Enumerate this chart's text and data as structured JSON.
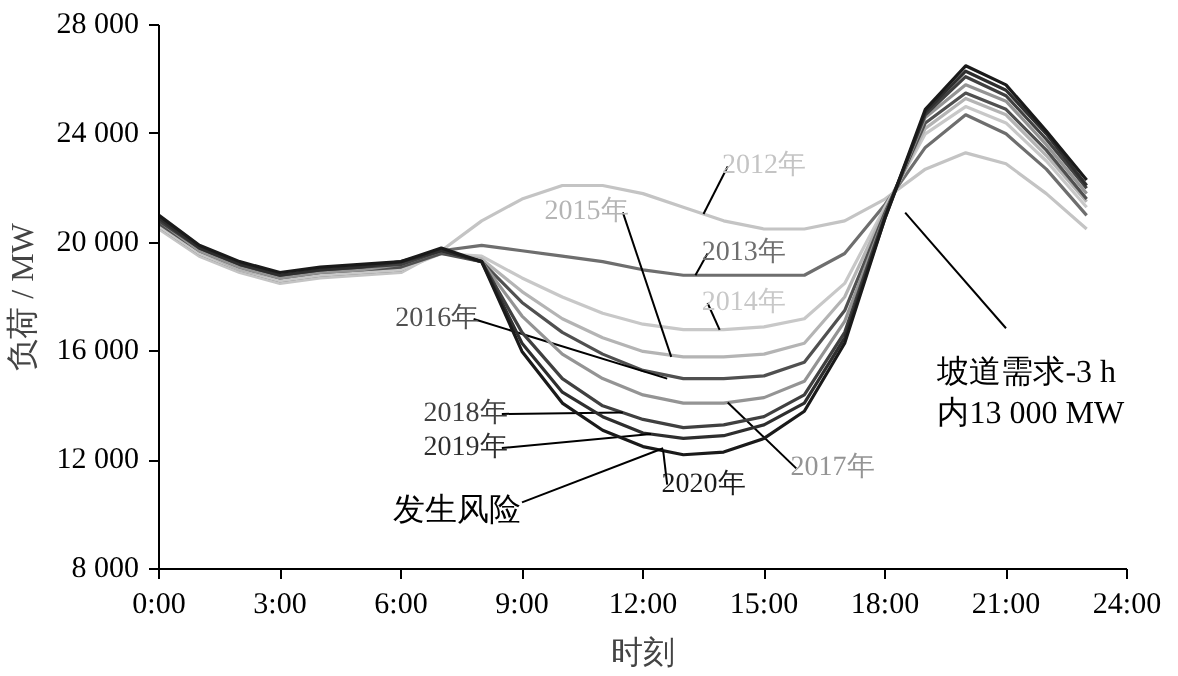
{
  "chart_data": {
    "type": "line",
    "xlabel": "时刻",
    "ylabel": "负荷 / MW",
    "x": [
      0,
      1,
      2,
      3,
      4,
      5,
      6,
      7,
      8,
      9,
      10,
      11,
      12,
      13,
      14,
      15,
      16,
      17,
      18,
      19,
      20,
      21,
      22,
      23
    ],
    "xlim": [
      0,
      24
    ],
    "ylim": [
      8000,
      28000
    ],
    "xticks": [
      {
        "value": 0,
        "label": "0:00"
      },
      {
        "value": 3,
        "label": "3:00"
      },
      {
        "value": 6,
        "label": "6:00"
      },
      {
        "value": 9,
        "label": "9:00"
      },
      {
        "value": 12,
        "label": "12:00"
      },
      {
        "value": 15,
        "label": "15:00"
      },
      {
        "value": 18,
        "label": "18:00"
      },
      {
        "value": 21,
        "label": "21:00"
      },
      {
        "value": 24,
        "label": "24:00"
      }
    ],
    "yticks": [
      {
        "value": 8000,
        "label": "8 000"
      },
      {
        "value": 12000,
        "label": "12 000"
      },
      {
        "value": 16000,
        "label": "16 000"
      },
      {
        "value": 20000,
        "label": "20 000"
      },
      {
        "value": 24000,
        "label": "24 000"
      },
      {
        "value": 28000,
        "label": "28 000"
      }
    ],
    "grid": false,
    "marker": "none",
    "line_style": "solid",
    "series": [
      {
        "name": "2012年",
        "color": "#c4c4c4",
        "values": [
          20500,
          19500,
          18900,
          18500,
          18700,
          18800,
          18900,
          19700,
          20800,
          21600,
          22100,
          22100,
          21800,
          21300,
          20800,
          20500,
          20500,
          20800,
          21600,
          22700,
          23300,
          22900,
          21800,
          20500
        ]
      },
      {
        "name": "2013年",
        "color": "#6e6e6e",
        "values": [
          20600,
          19600,
          19000,
          18600,
          18800,
          18900,
          19000,
          19700,
          19900,
          19700,
          19500,
          19300,
          19000,
          18800,
          18800,
          18800,
          18800,
          19600,
          21400,
          23500,
          24700,
          24000,
          22700,
          21000
        ]
      },
      {
        "name": "2014年",
        "color": "#c8c8c8",
        "values": [
          20600,
          19600,
          19000,
          18600,
          18800,
          18900,
          19000,
          19600,
          19500,
          18700,
          18000,
          17400,
          17000,
          16800,
          16800,
          16900,
          17200,
          18500,
          21300,
          24000,
          25000,
          24400,
          23000,
          21300
        ]
      },
      {
        "name": "2015年",
        "color": "#b4b4b4",
        "values": [
          20700,
          19700,
          19000,
          18700,
          18900,
          19000,
          19100,
          19600,
          19400,
          18200,
          17200,
          16500,
          16000,
          15800,
          15800,
          15900,
          16300,
          18000,
          21200,
          24200,
          25300,
          24700,
          23200,
          21500
        ]
      },
      {
        "name": "2016年",
        "color": "#505050",
        "values": [
          20700,
          19700,
          19100,
          18700,
          18900,
          19000,
          19100,
          19600,
          19300,
          17800,
          16700,
          15900,
          15300,
          15000,
          15000,
          15100,
          15600,
          17500,
          21100,
          24400,
          25500,
          24900,
          23400,
          21600
        ]
      },
      {
        "name": "2017年",
        "color": "#949494",
        "values": [
          20800,
          19700,
          19100,
          18700,
          18900,
          19000,
          19200,
          19700,
          19300,
          17300,
          15900,
          15000,
          14400,
          14100,
          14100,
          14300,
          14900,
          17100,
          21000,
          24600,
          25800,
          25200,
          23600,
          21800
        ]
      },
      {
        "name": "2018年",
        "color": "#404040",
        "values": [
          20800,
          19800,
          19200,
          18800,
          19000,
          19100,
          19200,
          19700,
          19300,
          16700,
          15000,
          14000,
          13500,
          13200,
          13300,
          13600,
          14400,
          16700,
          21000,
          24700,
          26100,
          25400,
          23800,
          22000
        ]
      },
      {
        "name": "2019年",
        "color": "#2e2e2e",
        "values": [
          20900,
          19800,
          19200,
          18800,
          19000,
          19100,
          19300,
          19700,
          19300,
          16300,
          14500,
          13600,
          13000,
          12800,
          12900,
          13300,
          14100,
          16500,
          20900,
          24800,
          26300,
          25600,
          24000,
          22100
        ]
      },
      {
        "name": "2020年",
        "color": "#1a1a1a",
        "values": [
          21000,
          19900,
          19300,
          18900,
          19100,
          19200,
          19300,
          19800,
          19300,
          16000,
          14100,
          13100,
          12500,
          12200,
          12300,
          12800,
          13800,
          16300,
          20900,
          24900,
          26500,
          25800,
          24100,
          22300
        ]
      }
    ],
    "annotations": [
      "坡道需求-3 h\n内13 000 MW",
      {
        "text": "发生风险",
        "x": 12.5,
        "y": 12440
      }
    ]
  }
}
